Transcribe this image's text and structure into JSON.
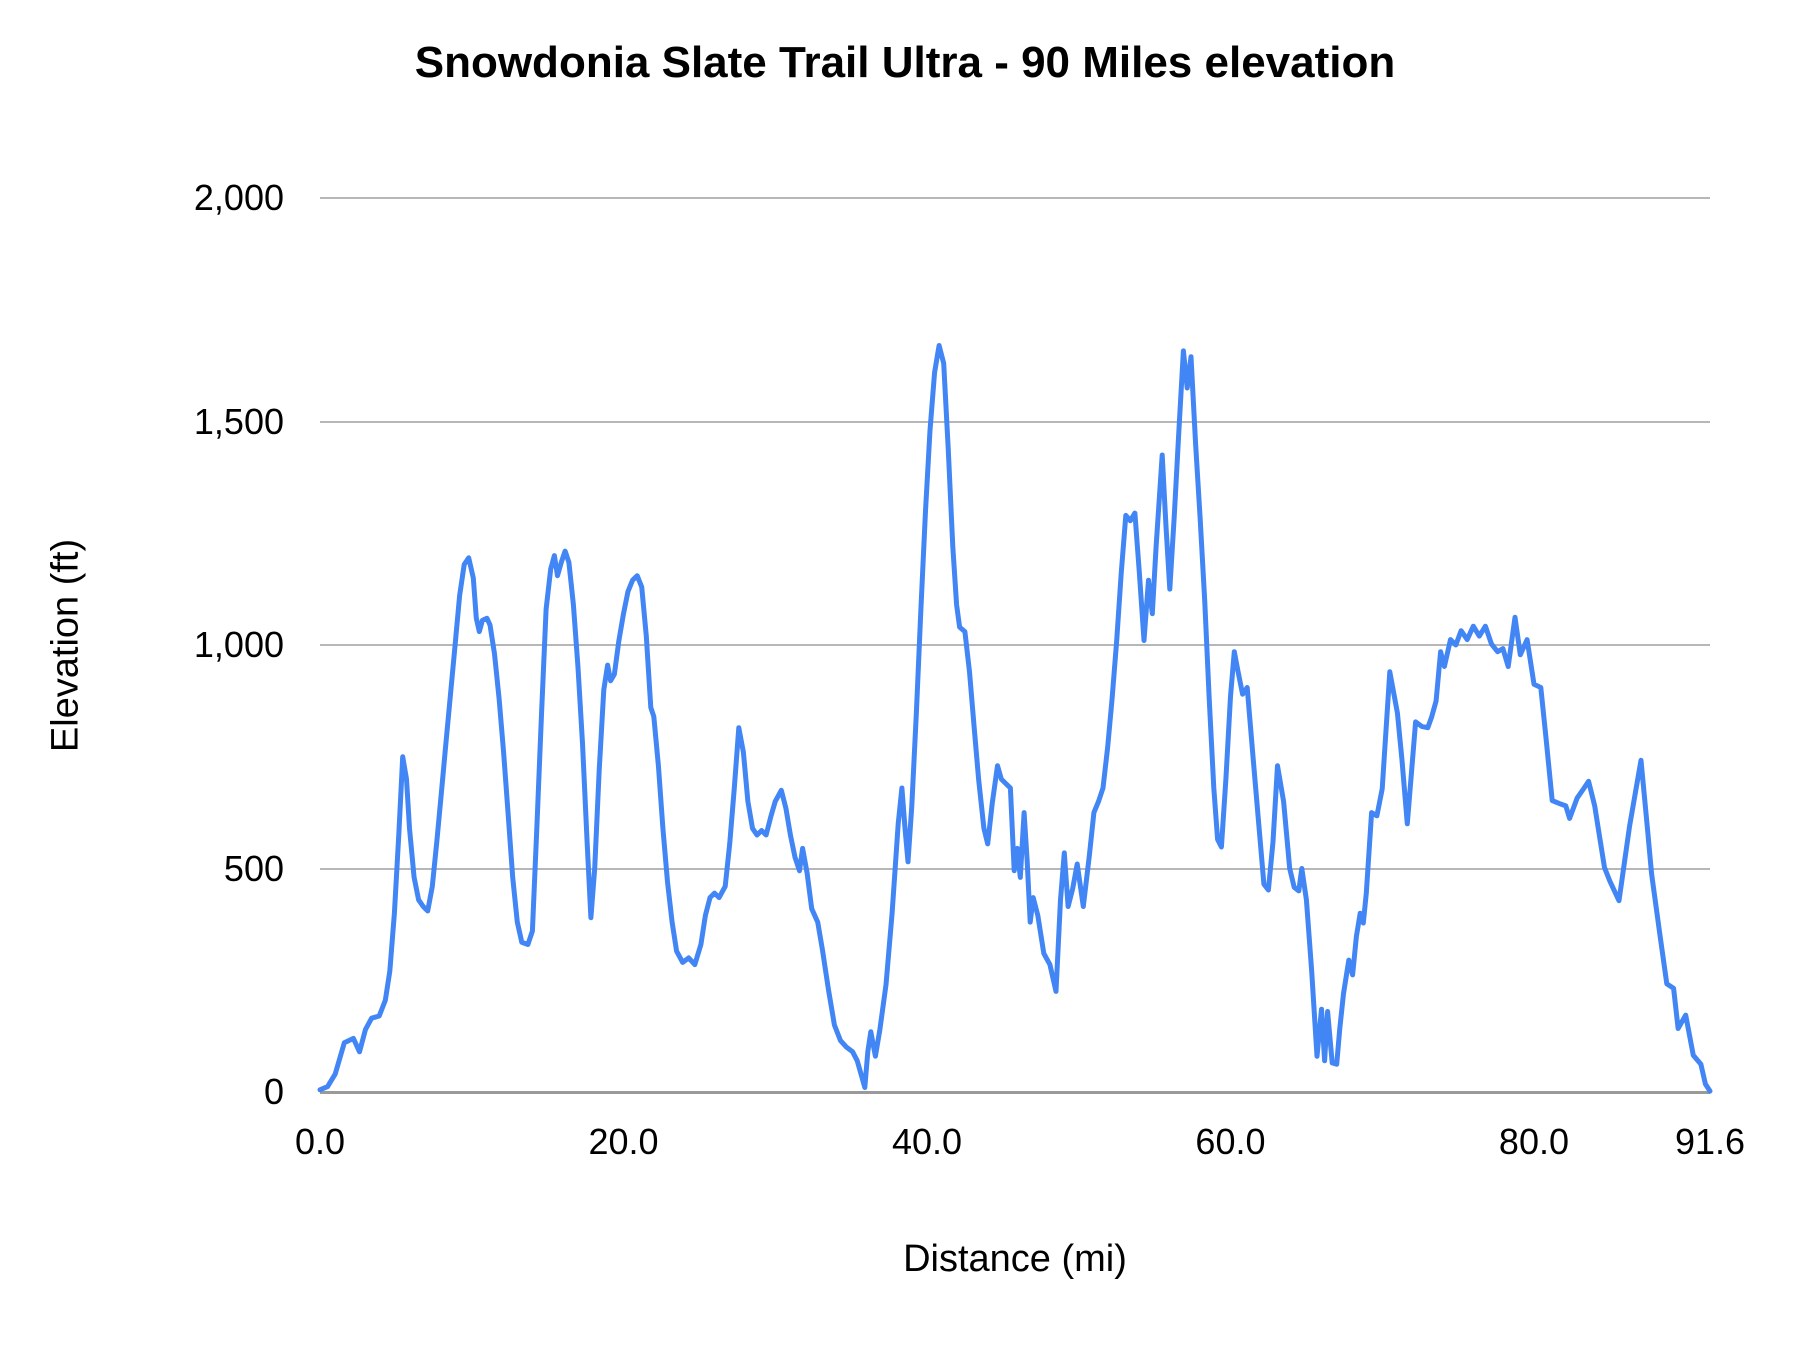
{
  "chart_data": {
    "type": "line",
    "title": "Snowdonia Slate Trail Ultra - 90 Miles elevation",
    "xlabel": "Distance (mi)",
    "ylabel": "Elevation (ft)",
    "xlim": [
      0,
      91.6
    ],
    "ylim": [
      0,
      2000
    ],
    "grid": "horizontal",
    "legend": "none",
    "line_color": "#4285f4",
    "gridline_color": "#b7b7b7",
    "axis_line_color": "#9a9a9a",
    "x_ticks": [
      "0.0",
      "20.0",
      "40.0",
      "60.0",
      "80.0",
      "91.6"
    ],
    "x_tick_values": [
      0,
      20,
      40,
      60,
      80,
      91.6
    ],
    "y_ticks": [
      "0",
      "500",
      "1,000",
      "1,500",
      "2,000"
    ],
    "y_tick_values": [
      0,
      500,
      1000,
      1500,
      2000
    ],
    "series": [
      {
        "name": "Elevation",
        "points": [
          [
            0,
            5
          ],
          [
            0.5,
            12
          ],
          [
            1.0,
            40
          ],
          [
            1.6,
            110
          ],
          [
            2.2,
            120
          ],
          [
            2.6,
            90
          ],
          [
            3.0,
            140
          ],
          [
            3.4,
            165
          ],
          [
            3.9,
            170
          ],
          [
            4.3,
            205
          ],
          [
            4.6,
            270
          ],
          [
            4.9,
            400
          ],
          [
            5.2,
            580
          ],
          [
            5.45,
            750
          ],
          [
            5.7,
            700
          ],
          [
            5.9,
            590
          ],
          [
            6.2,
            480
          ],
          [
            6.5,
            430
          ],
          [
            6.8,
            415
          ],
          [
            7.1,
            405
          ],
          [
            7.4,
            460
          ],
          [
            7.7,
            560
          ],
          [
            8.0,
            670
          ],
          [
            8.3,
            780
          ],
          [
            8.6,
            890
          ],
          [
            8.9,
            1000
          ],
          [
            9.2,
            1110
          ],
          [
            9.5,
            1180
          ],
          [
            9.8,
            1195
          ],
          [
            10.1,
            1150
          ],
          [
            10.3,
            1060
          ],
          [
            10.5,
            1030
          ],
          [
            10.7,
            1055
          ],
          [
            11.0,
            1060
          ],
          [
            11.2,
            1045
          ],
          [
            11.5,
            980
          ],
          [
            11.8,
            880
          ],
          [
            12.1,
            760
          ],
          [
            12.4,
            620
          ],
          [
            12.7,
            480
          ],
          [
            13.0,
            380
          ],
          [
            13.3,
            335
          ],
          [
            13.7,
            330
          ],
          [
            14.0,
            360
          ],
          [
            14.3,
            600
          ],
          [
            14.6,
            850
          ],
          [
            14.9,
            1080
          ],
          [
            15.2,
            1170
          ],
          [
            15.45,
            1200
          ],
          [
            15.65,
            1155
          ],
          [
            15.9,
            1185
          ],
          [
            16.15,
            1210
          ],
          [
            16.4,
            1185
          ],
          [
            16.7,
            1090
          ],
          [
            17.0,
            950
          ],
          [
            17.3,
            780
          ],
          [
            17.6,
            560
          ],
          [
            17.85,
            390
          ],
          [
            18.1,
            500
          ],
          [
            18.4,
            720
          ],
          [
            18.7,
            900
          ],
          [
            18.95,
            955
          ],
          [
            19.15,
            920
          ],
          [
            19.4,
            935
          ],
          [
            19.7,
            1010
          ],
          [
            20.0,
            1070
          ],
          [
            20.3,
            1120
          ],
          [
            20.6,
            1145
          ],
          [
            20.9,
            1155
          ],
          [
            21.2,
            1130
          ],
          [
            21.5,
            1020
          ],
          [
            21.8,
            860
          ],
          [
            22.0,
            840
          ],
          [
            22.3,
            730
          ],
          [
            22.6,
            590
          ],
          [
            22.9,
            470
          ],
          [
            23.2,
            380
          ],
          [
            23.5,
            315
          ],
          [
            23.9,
            290
          ],
          [
            24.3,
            300
          ],
          [
            24.7,
            285
          ],
          [
            25.1,
            330
          ],
          [
            25.4,
            395
          ],
          [
            25.7,
            435
          ],
          [
            26.0,
            445
          ],
          [
            26.3,
            435
          ],
          [
            26.7,
            460
          ],
          [
            27.0,
            555
          ],
          [
            27.3,
            680
          ],
          [
            27.6,
            815
          ],
          [
            27.9,
            760
          ],
          [
            28.2,
            650
          ],
          [
            28.5,
            590
          ],
          [
            28.8,
            575
          ],
          [
            29.1,
            585
          ],
          [
            29.4,
            575
          ],
          [
            29.7,
            615
          ],
          [
            30.0,
            650
          ],
          [
            30.4,
            675
          ],
          [
            30.7,
            635
          ],
          [
            31.0,
            575
          ],
          [
            31.3,
            525
          ],
          [
            31.6,
            495
          ],
          [
            31.8,
            545
          ],
          [
            32.1,
            490
          ],
          [
            32.4,
            410
          ],
          [
            32.8,
            380
          ],
          [
            33.1,
            320
          ],
          [
            33.5,
            230
          ],
          [
            33.9,
            150
          ],
          [
            34.3,
            115
          ],
          [
            34.7,
            100
          ],
          [
            35.1,
            90
          ],
          [
            35.4,
            70
          ],
          [
            35.7,
            35
          ],
          [
            35.9,
            10
          ],
          [
            36.1,
            90
          ],
          [
            36.3,
            135
          ],
          [
            36.6,
            80
          ],
          [
            36.9,
            140
          ],
          [
            37.3,
            240
          ],
          [
            37.7,
            400
          ],
          [
            38.1,
            600
          ],
          [
            38.35,
            680
          ],
          [
            38.55,
            590
          ],
          [
            38.75,
            515
          ],
          [
            39.0,
            640
          ],
          [
            39.3,
            850
          ],
          [
            39.6,
            1080
          ],
          [
            39.9,
            1300
          ],
          [
            40.2,
            1480
          ],
          [
            40.5,
            1610
          ],
          [
            40.8,
            1670
          ],
          [
            41.1,
            1630
          ],
          [
            41.4,
            1440
          ],
          [
            41.7,
            1220
          ],
          [
            41.95,
            1090
          ],
          [
            42.15,
            1040
          ],
          [
            42.5,
            1030
          ],
          [
            42.8,
            940
          ],
          [
            43.1,
            820
          ],
          [
            43.4,
            700
          ],
          [
            43.75,
            590
          ],
          [
            44.0,
            555
          ],
          [
            44.3,
            645
          ],
          [
            44.65,
            730
          ],
          [
            44.9,
            700
          ],
          [
            45.2,
            690
          ],
          [
            45.5,
            680
          ],
          [
            45.75,
            495
          ],
          [
            45.95,
            545
          ],
          [
            46.15,
            480
          ],
          [
            46.4,
            625
          ],
          [
            46.6,
            520
          ],
          [
            46.8,
            380
          ],
          [
            47.0,
            435
          ],
          [
            47.3,
            395
          ],
          [
            47.7,
            310
          ],
          [
            48.1,
            285
          ],
          [
            48.5,
            225
          ],
          [
            48.8,
            430
          ],
          [
            49.05,
            535
          ],
          [
            49.3,
            415
          ],
          [
            49.6,
            455
          ],
          [
            49.9,
            510
          ],
          [
            50.3,
            415
          ],
          [
            50.7,
            530
          ],
          [
            51.0,
            625
          ],
          [
            51.3,
            650
          ],
          [
            51.6,
            680
          ],
          [
            51.9,
            770
          ],
          [
            52.2,
            880
          ],
          [
            52.5,
            1010
          ],
          [
            52.8,
            1160
          ],
          [
            53.1,
            1290
          ],
          [
            53.4,
            1278
          ],
          [
            53.7,
            1295
          ],
          [
            54.0,
            1160
          ],
          [
            54.3,
            1010
          ],
          [
            54.6,
            1145
          ],
          [
            54.85,
            1070
          ],
          [
            55.1,
            1220
          ],
          [
            55.5,
            1425
          ],
          [
            55.75,
            1265
          ],
          [
            56.0,
            1125
          ],
          [
            56.3,
            1290
          ],
          [
            56.6,
            1480
          ],
          [
            56.9,
            1658
          ],
          [
            57.15,
            1575
          ],
          [
            57.4,
            1645
          ],
          [
            57.7,
            1450
          ],
          [
            58.0,
            1285
          ],
          [
            58.3,
            1100
          ],
          [
            58.6,
            880
          ],
          [
            58.9,
            680
          ],
          [
            59.15,
            565
          ],
          [
            59.4,
            548
          ],
          [
            59.7,
            700
          ],
          [
            60.0,
            885
          ],
          [
            60.25,
            985
          ],
          [
            60.5,
            940
          ],
          [
            60.8,
            890
          ],
          [
            61.1,
            905
          ],
          [
            61.5,
            745
          ],
          [
            61.9,
            585
          ],
          [
            62.2,
            465
          ],
          [
            62.5,
            452
          ],
          [
            62.8,
            560
          ],
          [
            63.1,
            730
          ],
          [
            63.5,
            650
          ],
          [
            63.9,
            500
          ],
          [
            64.2,
            458
          ],
          [
            64.5,
            450
          ],
          [
            64.7,
            500
          ],
          [
            65.0,
            430
          ],
          [
            65.35,
            270
          ],
          [
            65.7,
            80
          ],
          [
            66.0,
            185
          ],
          [
            66.2,
            70
          ],
          [
            66.4,
            180
          ],
          [
            66.7,
            65
          ],
          [
            67.0,
            62
          ],
          [
            67.2,
            140
          ],
          [
            67.45,
            220
          ],
          [
            67.8,
            295
          ],
          [
            68.05,
            262
          ],
          [
            68.3,
            348
          ],
          [
            68.55,
            400
          ],
          [
            68.75,
            378
          ],
          [
            68.95,
            445
          ],
          [
            69.3,
            625
          ],
          [
            69.65,
            618
          ],
          [
            70.0,
            678
          ],
          [
            70.5,
            940
          ],
          [
            71.0,
            848
          ],
          [
            71.3,
            742
          ],
          [
            71.65,
            600
          ],
          [
            72.2,
            828
          ],
          [
            72.6,
            818
          ],
          [
            73.0,
            815
          ],
          [
            73.25,
            838
          ],
          [
            73.55,
            875
          ],
          [
            73.85,
            985
          ],
          [
            74.1,
            952
          ],
          [
            74.5,
            1012
          ],
          [
            74.85,
            1000
          ],
          [
            75.2,
            1032
          ],
          [
            75.6,
            1012
          ],
          [
            76.0,
            1042
          ],
          [
            76.4,
            1020
          ],
          [
            76.8,
            1042
          ],
          [
            77.2,
            1002
          ],
          [
            77.6,
            985
          ],
          [
            77.95,
            992
          ],
          [
            78.3,
            952
          ],
          [
            78.75,
            1062
          ],
          [
            79.1,
            978
          ],
          [
            79.55,
            1012
          ],
          [
            80.0,
            912
          ],
          [
            80.45,
            905
          ],
          [
            80.8,
            790
          ],
          [
            81.2,
            652
          ],
          [
            81.7,
            645
          ],
          [
            82.1,
            640
          ],
          [
            82.35,
            612
          ],
          [
            82.85,
            658
          ],
          [
            83.3,
            680
          ],
          [
            83.6,
            695
          ],
          [
            84.0,
            640
          ],
          [
            84.35,
            565
          ],
          [
            84.65,
            502
          ],
          [
            85.0,
            472
          ],
          [
            85.6,
            428
          ],
          [
            86.3,
            595
          ],
          [
            87.05,
            742
          ],
          [
            87.45,
            600
          ],
          [
            87.75,
            488
          ],
          [
            88.3,
            352
          ],
          [
            88.75,
            242
          ],
          [
            89.2,
            232
          ],
          [
            89.5,
            142
          ],
          [
            90.0,
            172
          ],
          [
            90.5,
            82
          ],
          [
            91.0,
            62
          ],
          [
            91.3,
            18
          ],
          [
            91.6,
            2
          ]
        ]
      }
    ]
  }
}
